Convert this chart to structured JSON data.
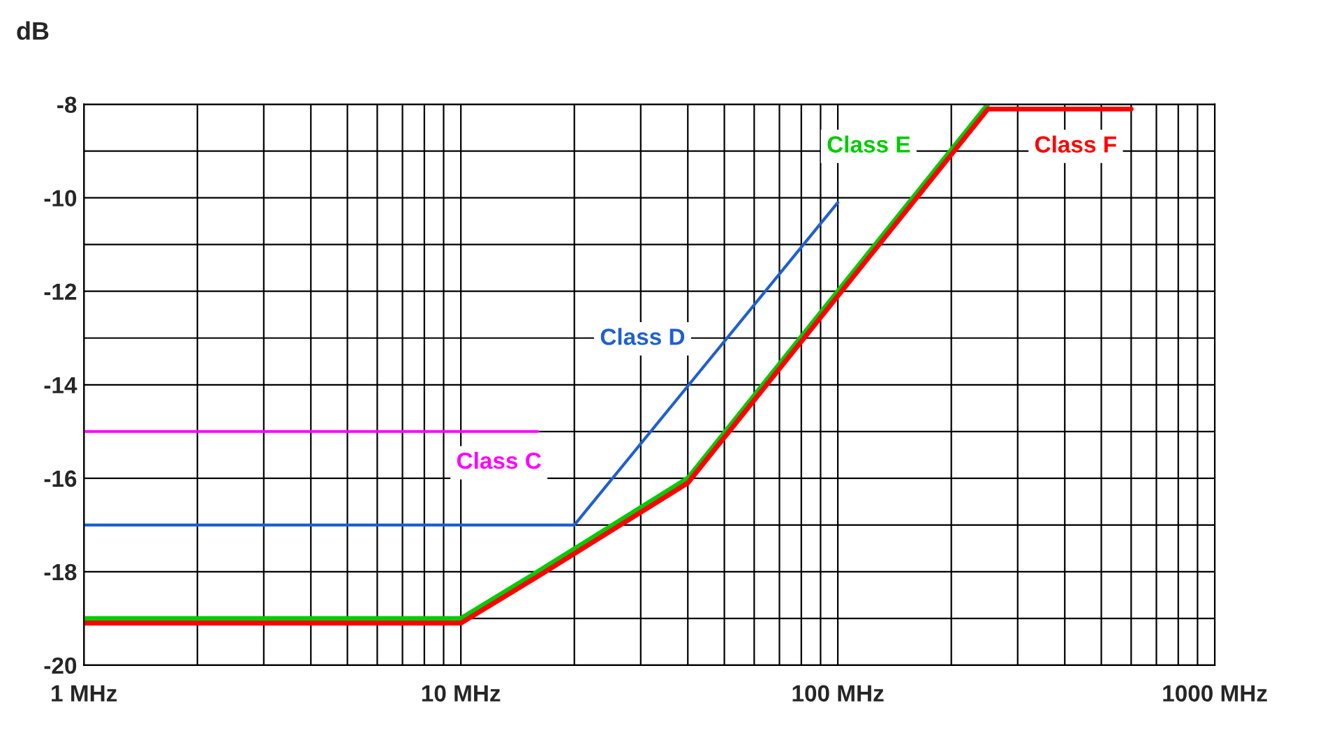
{
  "chart_data": {
    "type": "line",
    "ylabel": "dB",
    "log": "x",
    "grid": true,
    "legend": false,
    "xlim": [
      1,
      1000
    ],
    "xticks": [
      {
        "value": 1,
        "label": "1 MHz"
      },
      {
        "value": 10,
        "label": "10 MHz"
      },
      {
        "value": 100,
        "label": "100 MHz"
      },
      {
        "value": 1000,
        "label": "1000 MHz"
      }
    ],
    "ylim": [
      -20,
      -8
    ],
    "yticks": [
      -20,
      {
        "value": -19,
        "label": null
      },
      -18,
      {
        "value": -17,
        "label": null
      },
      -16,
      {
        "value": -15,
        "label": null
      },
      -14,
      {
        "value": -13,
        "label": null
      },
      -12,
      {
        "value": -11,
        "label": null
      },
      -10,
      {
        "value": -9,
        "label": null
      },
      -8
    ],
    "series": [
      {
        "name": "Class C",
        "color": "#ff00ff",
        "x": [
          1,
          16
        ],
        "values": [
          -15,
          -15
        ]
      },
      {
        "name": "Class D",
        "color": "#1f5fd0",
        "x": [
          1,
          20,
          100
        ],
        "values": [
          -17,
          -17,
          -10.1
        ]
      },
      {
        "name": "Class E",
        "color": "#00cc00",
        "x": [
          1,
          10,
          16,
          40,
          250
        ],
        "values": [
          -19,
          -19,
          -18,
          -16,
          -8
        ]
      },
      {
        "name": "Class F",
        "color": "#ff0000",
        "x": [
          1,
          10,
          16,
          40,
          250,
          600
        ],
        "values": [
          -19.1,
          -19.1,
          -18.1,
          -16.1,
          -8.1,
          -8.1
        ]
      }
    ]
  }
}
